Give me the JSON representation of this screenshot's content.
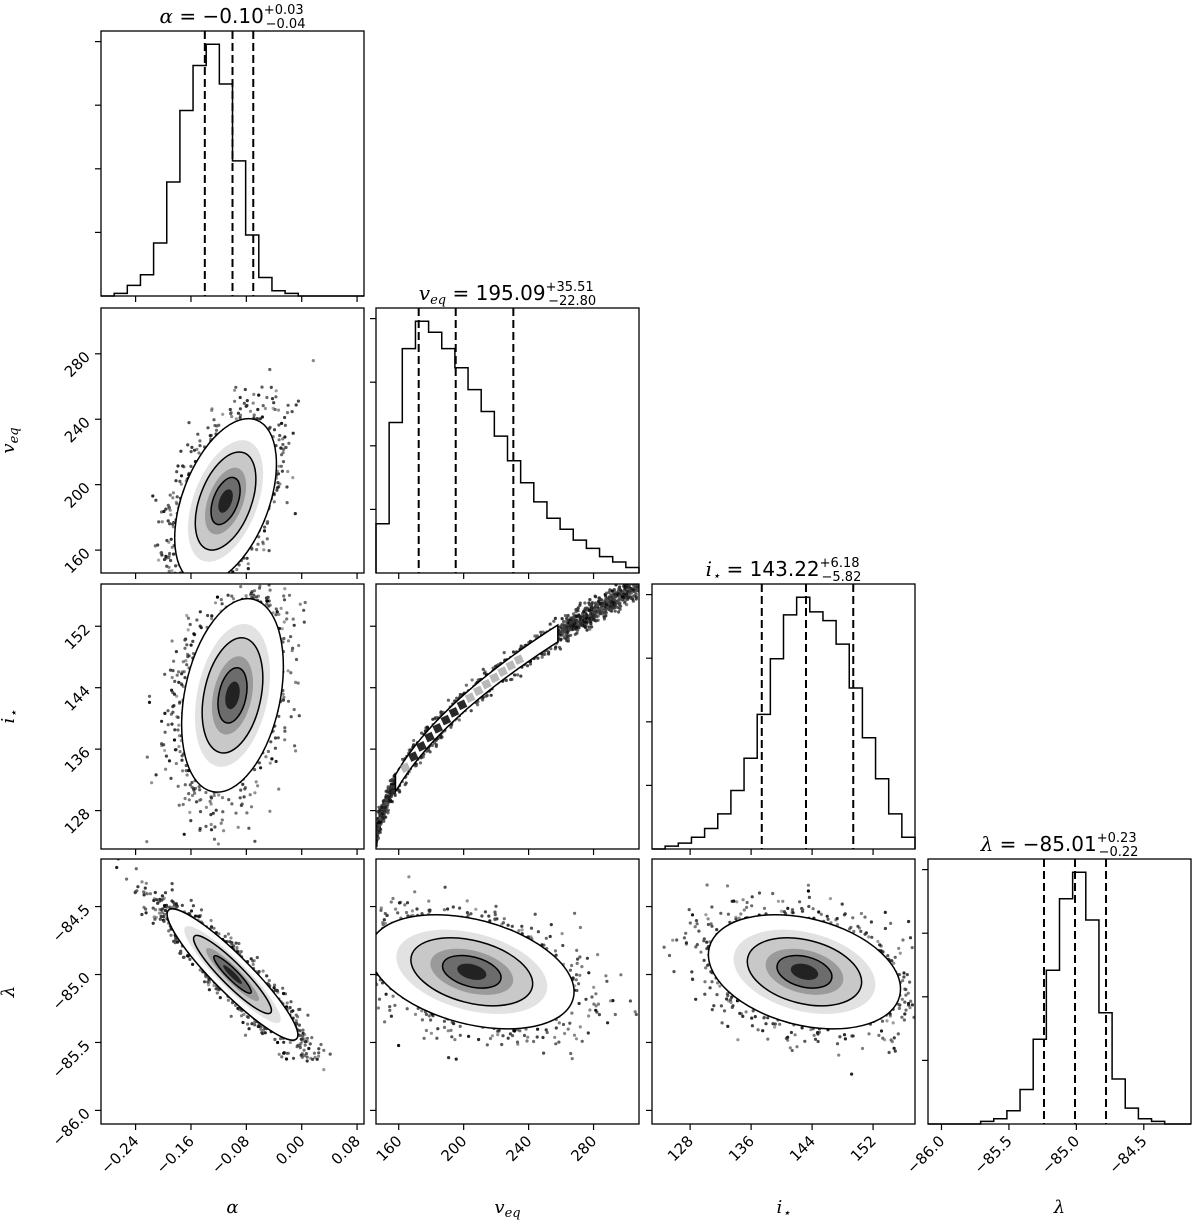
{
  "chart_data": {
    "type": "corner",
    "parameters": [
      {
        "key": "alpha",
        "label": "α",
        "label_sub": "",
        "range": [
          -0.29,
          0.09
        ],
        "ticks": [
          -0.24,
          -0.16,
          -0.08,
          0.0,
          0.08
        ],
        "tick_labels": [
          "−0.24",
          "−0.16",
          "−0.08",
          "0.00",
          "0.08"
        ],
        "title": {
          "symbol": "α",
          "symbol_sub": "",
          "value": "−0.10",
          "plus": "+0.03",
          "minus": "−0.04"
        },
        "quantiles": [
          -0.14,
          -0.1,
          -0.07
        ],
        "hist": {
          "edges_start": -0.29,
          "bin_width": 0.019,
          "counts": [
            0,
            0.01,
            0.04,
            0.08,
            0.2,
            0.43,
            0.7,
            0.87,
            0.95,
            0.8,
            0.51,
            0.23,
            0.07,
            0.02,
            0.01,
            0,
            0,
            0,
            0,
            0
          ]
        }
      },
      {
        "key": "veq",
        "label": "v",
        "label_sub": "eq",
        "range": [
          146,
          308
        ],
        "ticks": [
          160,
          200,
          240,
          280
        ],
        "tick_labels": [
          "160",
          "200",
          "240",
          "280"
        ],
        "title": {
          "symbol": "v",
          "symbol_sub": "eq",
          "value": "195.09",
          "plus": "+35.51",
          "minus": "−22.80"
        },
        "quantiles": [
          172.3,
          195.1,
          230.6
        ],
        "hist": {
          "edges_start": 146,
          "bin_width": 8.1,
          "counts": [
            0.18,
            0.55,
            0.82,
            0.92,
            0.88,
            0.82,
            0.75,
            0.67,
            0.59,
            0.5,
            0.41,
            0.33,
            0.26,
            0.2,
            0.16,
            0.12,
            0.09,
            0.06,
            0.04,
            0.02
          ]
        }
      },
      {
        "key": "inc",
        "label": "i",
        "label_sub": "⋆",
        "range": [
          123,
          157.5
        ],
        "ticks": [
          128,
          136,
          144,
          152
        ],
        "tick_labels": [
          "128",
          "136",
          "144",
          "152"
        ],
        "title": {
          "symbol": "i",
          "symbol_sub": "⋆",
          "value": "143.22",
          "plus": "+6.18",
          "minus": "−5.82"
        },
        "quantiles": [
          137.4,
          143.2,
          149.4
        ],
        "hist": {
          "edges_start": 123,
          "bin_width": 1.725,
          "counts": [
            0,
            0.01,
            0.02,
            0.04,
            0.07,
            0.12,
            0.2,
            0.31,
            0.46,
            0.65,
            0.8,
            0.86,
            0.81,
            0.78,
            0.7,
            0.55,
            0.38,
            0.24,
            0.12,
            0.04
          ]
        }
      },
      {
        "key": "lambda",
        "label": "λ",
        "label_sub": "",
        "range": [
          -86.1,
          -84.15
        ],
        "ticks": [
          -86.0,
          -85.5,
          -85.0,
          -84.5
        ],
        "tick_labels": [
          "−86.0",
          "−85.5",
          "−85.0",
          "−84.5"
        ],
        "title": {
          "symbol": "λ",
          "symbol_sub": "",
          "value": "−85.01",
          "plus": "+0.23",
          "minus": "−0.22"
        },
        "quantiles": [
          -85.24,
          -85.01,
          -84.78
        ],
        "hist": {
          "edges_start": -86.1,
          "bin_width": 0.0975,
          "counts": [
            0,
            0,
            0,
            0,
            0.01,
            0.02,
            0.05,
            0.13,
            0.32,
            0.58,
            0.85,
            0.95,
            0.77,
            0.42,
            0.17,
            0.06,
            0.02,
            0.01,
            0,
            0
          ]
        }
      }
    ],
    "correlations": {
      "veq|alpha": {
        "mean": [
          -0.11,
          190
        ],
        "sd": [
          0.035,
          24
        ],
        "rho": 0.45
      },
      "inc|alpha": {
        "mean": [
          -0.1,
          143
        ],
        "sd": [
          0.035,
          6.0
        ],
        "rho": 0.3
      },
      "lambda|alpha": {
        "mean": [
          -0.1,
          -85.0
        ],
        "sd": [
          0.045,
          0.23
        ],
        "rho": -0.92
      },
      "lambda|veq": {
        "mean": [
          205,
          -84.98
        ],
        "sd": [
          30,
          0.2
        ],
        "rho": -0.35
      },
      "lambda|inc": {
        "mean": [
          143,
          -84.98
        ],
        "sd": [
          6.0,
          0.2
        ],
        "rho": -0.3
      }
    },
    "curved_pair": "inc|veq",
    "grid": false
  }
}
